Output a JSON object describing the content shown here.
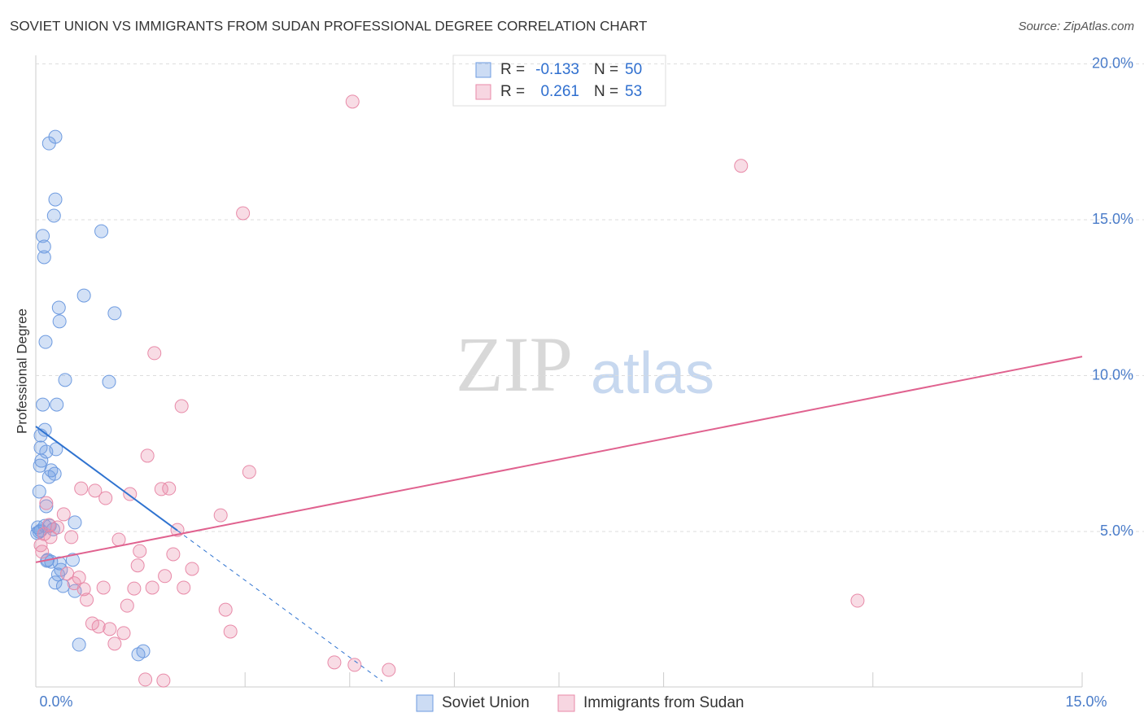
{
  "chart_data": {
    "type": "scatter",
    "title": "SOVIET UNION VS IMMIGRANTS FROM SUDAN PROFESSIONAL DEGREE CORRELATION CHART",
    "source": "Source: ZipAtlas.com",
    "y_label": "Professional Degree",
    "watermark": [
      "ZIP",
      "atlas"
    ],
    "xlim": [
      0,
      15
    ],
    "ylim": [
      0,
      20.5
    ],
    "xticks": [
      {
        "value": 0,
        "label": "0.0%"
      },
      {
        "value": 15,
        "label": "15.0%"
      }
    ],
    "xminor_ticks": [
      3,
      4.5,
      6,
      7.5,
      9,
      12,
      15
    ],
    "yticks": [
      {
        "value": 5,
        "label": "5.0%"
      },
      {
        "value": 10,
        "label": "10.0%"
      },
      {
        "value": 15,
        "label": "15.0%"
      },
      {
        "value": 20,
        "label": "20.0%"
      }
    ],
    "grid": true,
    "series": [
      {
        "name": "Soviet Union",
        "color": "#6e9be0",
        "line_color": "#2f73d0",
        "stat_labels": [
          "R =",
          "N ="
        ],
        "r": -0.133,
        "n": 50,
        "trend_x": [
          0,
          2.03,
          4.97
        ],
        "trend_y": [
          8.37,
          5.03,
          0.19
        ],
        "x": [
          0.28,
          0.19,
          0.28,
          0.26,
          0.94,
          0.1,
          0.12,
          0.12,
          0.69,
          0.33,
          1.13,
          0.34,
          0.14,
          0.42,
          1.05,
          0.1,
          0.3,
          0.13,
          0.07,
          0.07,
          0.15,
          0.29,
          0.08,
          0.06,
          0.22,
          0.27,
          0.19,
          0.05,
          0.15,
          0.56,
          0.13,
          0.2,
          0.03,
          0.07,
          0.02,
          0.17,
          0.22,
          0.53,
          0.34,
          0.36,
          0.32,
          0.28,
          0.39,
          0.56,
          0.62,
          1.54,
          1.47,
          0.16,
          0.05,
          0.25
        ],
        "values": [
          17.66,
          17.45,
          15.65,
          15.13,
          14.63,
          14.48,
          14.14,
          13.8,
          12.57,
          12.18,
          12.0,
          11.74,
          11.08,
          9.86,
          9.8,
          9.07,
          9.07,
          8.26,
          8.08,
          7.69,
          7.56,
          7.64,
          7.27,
          7.11,
          6.96,
          6.85,
          6.75,
          6.28,
          5.81,
          5.29,
          5.18,
          5.18,
          5.13,
          5.03,
          4.95,
          4.09,
          4.03,
          4.09,
          3.98,
          3.77,
          3.62,
          3.36,
          3.25,
          3.09,
          1.37,
          1.16,
          1.06,
          4.06,
          4.99,
          5.07
        ]
      },
      {
        "name": "Immigrants from Sudan",
        "color": "#e88aa8",
        "line_color": "#e0628f",
        "stat_labels": [
          "R =",
          "N ="
        ],
        "r": 0.261,
        "n": 53,
        "trend_x": [
          0,
          15
        ],
        "trend_y": [
          4.01,
          10.61
        ],
        "x": [
          4.54,
          10.11,
          2.97,
          1.7,
          2.09,
          1.6,
          3.06,
          0.65,
          0.85,
          1.0,
          1.35,
          1.8,
          1.91,
          0.15,
          2.65,
          0.4,
          0.19,
          0.31,
          2.03,
          0.12,
          0.51,
          0.21,
          1.19,
          0.07,
          0.09,
          1.49,
          1.97,
          1.46,
          2.24,
          0.45,
          0.62,
          1.85,
          0.55,
          0.97,
          0.69,
          1.41,
          1.67,
          2.12,
          0.73,
          11.78,
          1.31,
          2.72,
          0.81,
          0.9,
          1.06,
          1.26,
          2.79,
          1.13,
          4.28,
          4.57,
          5.06,
          1.57,
          1.83
        ],
        "values": [
          18.79,
          16.73,
          15.21,
          10.72,
          9.02,
          7.43,
          6.91,
          6.38,
          6.31,
          6.07,
          6.2,
          6.36,
          6.38,
          5.91,
          5.52,
          5.55,
          5.21,
          5.13,
          5.05,
          4.92,
          4.82,
          4.82,
          4.74,
          4.56,
          4.35,
          4.37,
          4.27,
          3.91,
          3.8,
          3.65,
          3.52,
          3.57,
          3.34,
          3.2,
          3.15,
          3.17,
          3.2,
          3.2,
          2.81,
          2.78,
          2.62,
          2.49,
          2.05,
          1.95,
          1.87,
          1.74,
          1.79,
          1.4,
          0.8,
          0.72,
          0.56,
          0.25,
          0.22
        ]
      }
    ]
  }
}
